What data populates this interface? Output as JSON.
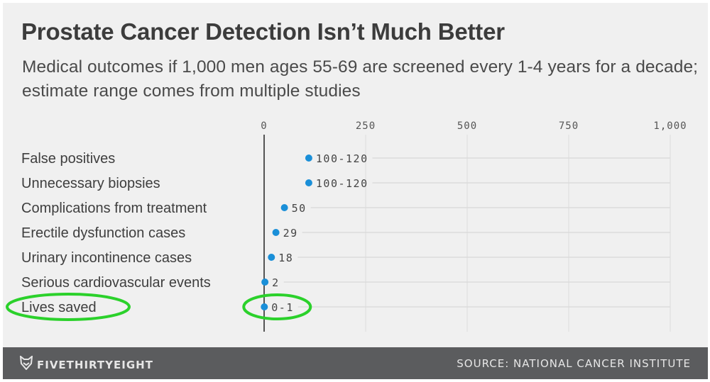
{
  "title": "Prostate Cancer Detection Isn’t Much Better",
  "subtitle": "Medical outcomes if 1,000 men ages 55-69 are screened every 1-4 years for a decade; estimate range comes from multiple studies",
  "footer": {
    "brand": "FIVETHIRTYEIGHT",
    "brand_icon": "fox-logo-icon",
    "source": "SOURCE: NATIONAL CANCER INSTITUTE"
  },
  "colors": {
    "dot": "#1a8fd8",
    "highlight": "#2bd12b",
    "footer_bg": "#5b5c5e",
    "panel_bg": "#f0f0f0"
  },
  "chart_data": {
    "type": "scatter",
    "title": "Prostate Cancer Detection Isn’t Much Better",
    "subtitle": "Medical outcomes if 1,000 men ages 55-69 are screened every 1-4 years for a decade; estimate range comes from multiple studies",
    "xlabel": "",
    "ylabel": "",
    "xlim": [
      0,
      1000
    ],
    "x_ticks": [
      0,
      250,
      500,
      750,
      1000
    ],
    "x_tick_labels": [
      "0",
      "250",
      "500",
      "750",
      "1,000"
    ],
    "x_axis_position": "top",
    "grid": true,
    "categories": [
      "False positives",
      "Unnecessary biopsies",
      "Complications from treatment",
      "Erectile dysfunction cases",
      "Urinary incontinence cases",
      "Serious cardiovascular events",
      "Lives saved"
    ],
    "values": [
      110,
      110,
      50,
      29,
      18,
      2,
      0.5
    ],
    "value_labels": [
      "100-120",
      "100-120",
      "50",
      "29",
      "18",
      "2",
      "0-1"
    ],
    "ranges": [
      [
        100,
        120
      ],
      [
        100,
        120
      ],
      [
        50,
        50
      ],
      [
        29,
        29
      ],
      [
        18,
        18
      ],
      [
        2,
        2
      ],
      [
        0,
        1
      ]
    ],
    "annotations": [
      {
        "type": "highlight-circle",
        "target": "Lives saved",
        "part": "category-label"
      },
      {
        "type": "highlight-circle",
        "target": "Lives saved",
        "part": "value-label"
      }
    ]
  }
}
